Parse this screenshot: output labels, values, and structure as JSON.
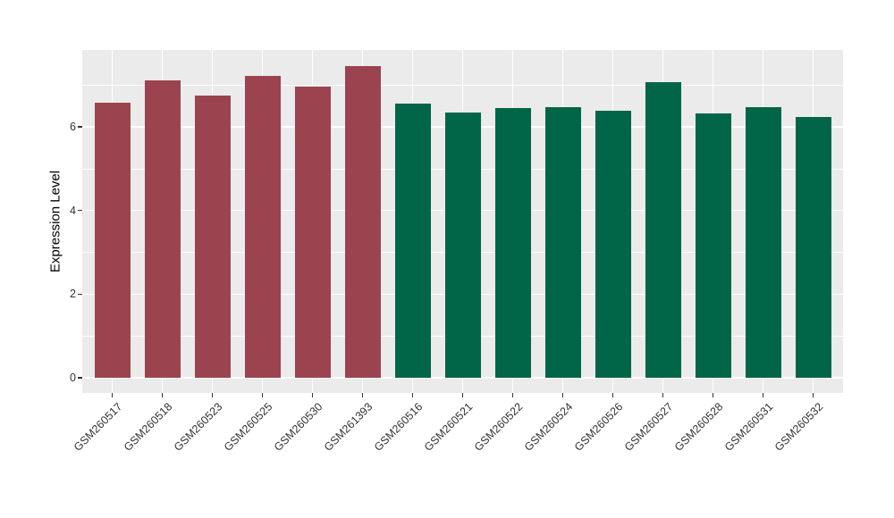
{
  "chart_data": {
    "type": "bar",
    "title": "",
    "xlabel": "",
    "ylabel": "Expression Level",
    "categories": [
      "GSM260517",
      "GSM260518",
      "GSM260523",
      "GSM260525",
      "GSM260530",
      "GSM261393",
      "GSM260516",
      "GSM260521",
      "GSM260522",
      "GSM260524",
      "GSM260526",
      "GSM260527",
      "GSM260528",
      "GSM260531",
      "GSM260532"
    ],
    "values": [
      6.57,
      7.1,
      6.75,
      7.22,
      6.95,
      7.45,
      6.56,
      6.34,
      6.45,
      6.46,
      6.38,
      7.06,
      6.32,
      6.46,
      6.23
    ],
    "bar_groups": [
      "red",
      "red",
      "red",
      "red",
      "red",
      "red",
      "green",
      "green",
      "green",
      "green",
      "green",
      "green",
      "green",
      "green",
      "green"
    ],
    "group_colors": {
      "red": "#9B4450",
      "green": "#016647"
    },
    "yticks": [
      0,
      2,
      4,
      6
    ],
    "minor_yticks": [
      1,
      3,
      5,
      7
    ],
    "ylim": [
      -0.37,
      7.83
    ],
    "grid": true,
    "legend": false,
    "colors": {
      "panel_bg": "#EBEBEB",
      "grid": "#FFFFFF",
      "axis_text": "#333333",
      "axis_title": "#000000",
      "tick_mark": "#333333"
    }
  }
}
